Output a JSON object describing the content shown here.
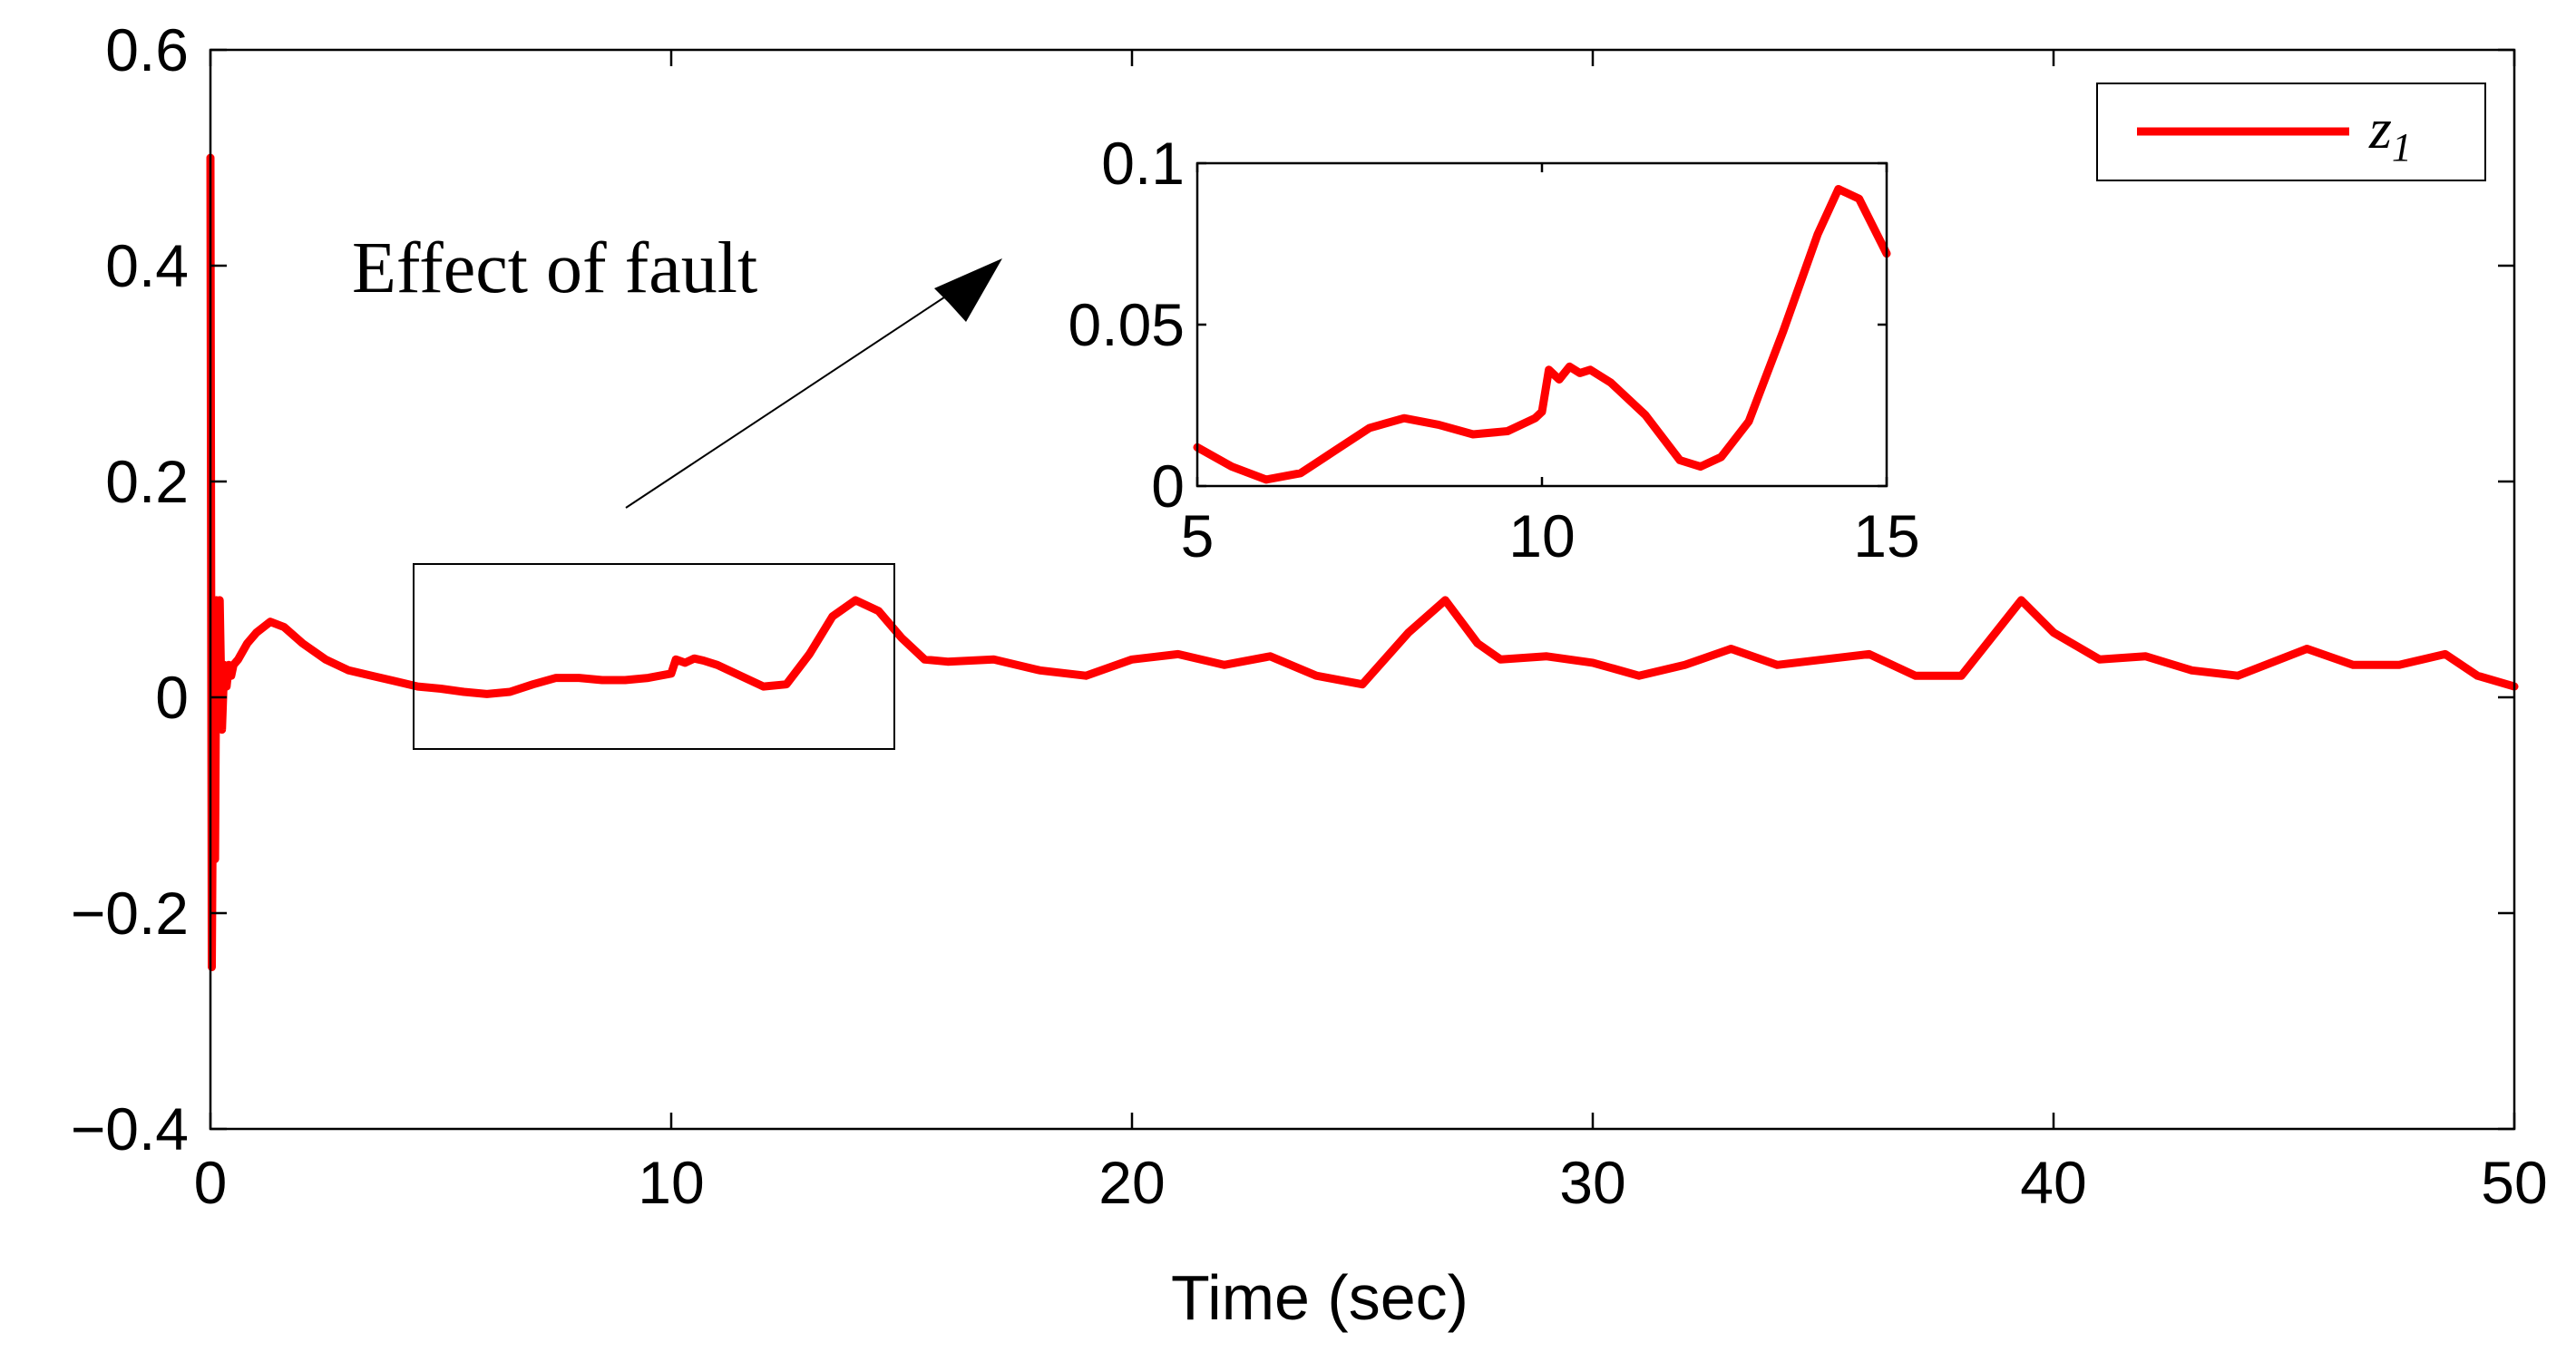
{
  "chart_data": [
    {
      "type": "line",
      "xlabel": "Time (sec)",
      "ylabel": "",
      "xlim": [
        0,
        50
      ],
      "ylim": [
        -0.4,
        0.6
      ],
      "xticks": [
        "0",
        "10",
        "20",
        "30",
        "40",
        "50"
      ],
      "yticks": [
        "0.6",
        "0.4",
        "0.2",
        "0",
        "−0.2",
        "−0.4"
      ],
      "grid": false,
      "legend": {
        "placement": "top-right",
        "entries": [
          {
            "name": "z",
            "sub": "1"
          }
        ]
      },
      "annotation": "Effect of fault",
      "series": [
        {
          "name": "z1",
          "color": "#ff0000",
          "x": [
            0,
            0.03,
            0.07,
            0.1,
            0.13,
            0.17,
            0.2,
            0.25,
            0.3,
            0.35,
            0.4,
            0.45,
            0.5,
            0.6,
            0.8,
            1.0,
            1.3,
            1.6,
            2.0,
            2.5,
            3.0,
            3.5,
            4.0,
            4.5,
            5.0,
            5.5,
            6.0,
            6.5,
            7.0,
            7.5,
            8.0,
            8.5,
            9.0,
            9.5,
            10.0,
            10.1,
            10.3,
            10.5,
            10.7,
            11.0,
            11.5,
            12.0,
            12.5,
            13.0,
            13.5,
            14.0,
            14.5,
            15.0,
            15.5,
            16.0,
            17.0,
            18.0,
            19.0,
            20.0,
            21.0,
            22.0,
            23.0,
            24.0,
            25.0,
            26.0,
            26.8,
            27.5,
            28.0,
            29.0,
            30.0,
            31.0,
            32.0,
            33.0,
            34.0,
            35.0,
            36.0,
            37.0,
            38.0,
            39.3,
            40.0,
            41.0,
            42.0,
            43.0,
            44.0,
            45.5,
            46.5,
            47.5,
            48.5,
            49.2,
            50.0
          ],
          "y": [
            0.5,
            -0.25,
            0.05,
            -0.15,
            0.09,
            -0.02,
            0.09,
            -0.03,
            0.03,
            0.01,
            0.03,
            0.02,
            0.03,
            0.035,
            0.05,
            0.06,
            0.07,
            0.065,
            0.05,
            0.035,
            0.025,
            0.02,
            0.015,
            0.01,
            0.008,
            0.005,
            0.003,
            0.005,
            0.012,
            0.018,
            0.018,
            0.016,
            0.016,
            0.018,
            0.022,
            0.035,
            0.032,
            0.036,
            0.034,
            0.03,
            0.02,
            0.01,
            0.012,
            0.04,
            0.075,
            0.09,
            0.08,
            0.055,
            0.035,
            0.033,
            0.035,
            0.025,
            0.02,
            0.035,
            0.04,
            0.03,
            0.038,
            0.02,
            0.012,
            0.06,
            0.09,
            0.05,
            0.035,
            0.038,
            0.032,
            0.02,
            0.03,
            0.045,
            0.03,
            0.035,
            0.04,
            0.02,
            0.02,
            0.09,
            0.06,
            0.035,
            0.038,
            0.025,
            0.02,
            0.045,
            0.03,
            0.03,
            0.04,
            0.02,
            0.01
          ]
        }
      ]
    },
    {
      "type": "line",
      "xlim": [
        5,
        15
      ],
      "ylim": [
        0,
        0.1
      ],
      "xticks": [
        "5",
        "10",
        "15"
      ],
      "yticks": [
        "0.1",
        "0.05",
        "0"
      ],
      "series": [
        {
          "name": "z1",
          "color": "#ff0000",
          "x": [
            5.0,
            5.5,
            6.0,
            6.5,
            7.0,
            7.5,
            8.0,
            8.5,
            9.0,
            9.5,
            9.9,
            10.0,
            10.1,
            10.25,
            10.4,
            10.55,
            10.7,
            11.0,
            11.5,
            12.0,
            12.3,
            12.6,
            13.0,
            13.5,
            14.0,
            14.3,
            14.6,
            15.0
          ],
          "y": [
            0.012,
            0.006,
            0.002,
            0.004,
            0.011,
            0.018,
            0.021,
            0.019,
            0.016,
            0.017,
            0.021,
            0.023,
            0.036,
            0.033,
            0.037,
            0.035,
            0.036,
            0.032,
            0.022,
            0.008,
            0.006,
            0.009,
            0.02,
            0.048,
            0.078,
            0.092,
            0.089,
            0.072
          ]
        }
      ]
    }
  ]
}
